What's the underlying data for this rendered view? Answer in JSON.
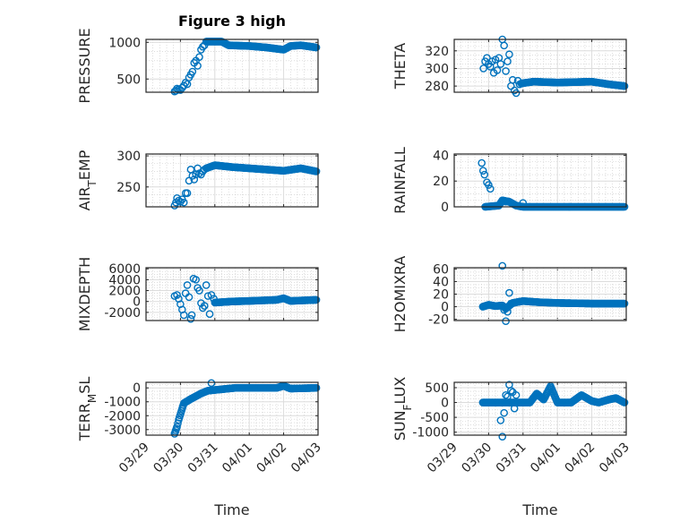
{
  "chart_data": [
    {
      "type": "scatter",
      "title": "Figure 3 high",
      "ylabel_parts": [
        "PRESSURE"
      ],
      "xlabel": "",
      "ylim": [
        320,
        1040
      ],
      "yticks": [
        500,
        1000
      ],
      "xlim": [
        0,
        5
      ],
      "x_units": "days since 03/29",
      "outliers": [
        [
          0.83,
          330
        ],
        [
          0.87,
          340
        ],
        [
          0.9,
          370
        ],
        [
          0.95,
          360
        ],
        [
          1.0,
          350
        ],
        [
          1.05,
          380
        ],
        [
          1.1,
          410
        ],
        [
          1.15,
          450
        ],
        [
          1.2,
          430
        ],
        [
          1.25,
          520
        ],
        [
          1.3,
          560
        ],
        [
          1.35,
          600
        ],
        [
          1.4,
          720
        ],
        [
          1.45,
          750
        ],
        [
          1.5,
          680
        ],
        [
          1.55,
          800
        ],
        [
          1.6,
          900
        ],
        [
          1.65,
          940
        ],
        [
          1.7,
          960
        ]
      ],
      "trace": [
        [
          1.75,
          1010
        ],
        [
          2.2,
          1010
        ],
        [
          2.4,
          960
        ],
        [
          3.0,
          950
        ],
        [
          3.5,
          930
        ],
        [
          4.0,
          900
        ],
        [
          4.2,
          950
        ],
        [
          4.5,
          960
        ],
        [
          4.95,
          930
        ]
      ]
    },
    {
      "type": "scatter",
      "title": "",
      "ylabel_parts": [
        "THETA"
      ],
      "xlabel": "",
      "ylim": [
        273,
        333
      ],
      "yticks": [
        280,
        300,
        320
      ],
      "xlim": [
        0,
        5
      ],
      "outliers": [
        [
          0.85,
          300
        ],
        [
          0.9,
          308
        ],
        [
          0.95,
          312
        ],
        [
          1.0,
          305
        ],
        [
          1.05,
          302
        ],
        [
          1.1,
          308
        ],
        [
          1.15,
          295
        ],
        [
          1.2,
          310
        ],
        [
          1.25,
          298
        ],
        [
          1.3,
          312
        ],
        [
          1.35,
          305
        ],
        [
          1.4,
          333
        ],
        [
          1.45,
          326
        ],
        [
          1.5,
          297
        ],
        [
          1.55,
          308
        ],
        [
          1.6,
          316
        ],
        [
          1.65,
          280
        ],
        [
          1.7,
          287
        ],
        [
          1.75,
          275
        ],
        [
          1.8,
          272
        ],
        [
          1.85,
          286
        ],
        [
          1.9,
          282
        ]
      ],
      "trace": [
        [
          1.95,
          283
        ],
        [
          2.3,
          285
        ],
        [
          3.0,
          284
        ],
        [
          4.0,
          285
        ],
        [
          4.5,
          282
        ],
        [
          4.95,
          280
        ]
      ]
    },
    {
      "type": "scatter",
      "title": "",
      "ylabel_parts": [
        "AIR",
        "T",
        "EMP"
      ],
      "xlabel": "",
      "ylim": [
        218,
        303
      ],
      "yticks": [
        250,
        300
      ],
      "xlim": [
        0,
        5
      ],
      "outliers": [
        [
          0.83,
          220
        ],
        [
          0.87,
          225
        ],
        [
          0.9,
          232
        ],
        [
          0.95,
          228
        ],
        [
          1.0,
          226
        ],
        [
          1.05,
          230
        ],
        [
          1.1,
          225
        ],
        [
          1.15,
          240
        ],
        [
          1.2,
          240
        ],
        [
          1.25,
          260
        ],
        [
          1.3,
          278
        ],
        [
          1.35,
          268
        ],
        [
          1.4,
          262
        ],
        [
          1.45,
          270
        ],
        [
          1.5,
          280
        ],
        [
          1.55,
          272
        ],
        [
          1.6,
          270
        ],
        [
          1.65,
          275
        ],
        [
          1.7,
          278
        ]
      ],
      "trace": [
        [
          1.75,
          280
        ],
        [
          2.0,
          285
        ],
        [
          2.5,
          282
        ],
        [
          3.0,
          280
        ],
        [
          3.5,
          278
        ],
        [
          4.0,
          276
        ],
        [
          4.5,
          280
        ],
        [
          4.95,
          275
        ]
      ]
    },
    {
      "type": "scatter",
      "title": "",
      "ylabel_parts": [
        "RAINFALL"
      ],
      "xlabel": "",
      "ylim": [
        0,
        41
      ],
      "yticks": [
        0,
        20,
        40
      ],
      "xlim": [
        0,
        5
      ],
      "outliers": [
        [
          0.8,
          34
        ],
        [
          0.84,
          28
        ],
        [
          0.88,
          25
        ],
        [
          0.95,
          19
        ],
        [
          1.0,
          17
        ],
        [
          1.05,
          14
        ],
        [
          1.4,
          5
        ],
        [
          1.5,
          4
        ],
        [
          2.0,
          3
        ]
      ],
      "trace": [
        [
          0.9,
          0
        ],
        [
          1.3,
          1
        ],
        [
          1.4,
          5
        ],
        [
          1.6,
          4
        ],
        [
          1.8,
          1
        ],
        [
          2.0,
          0
        ],
        [
          4.95,
          0
        ]
      ]
    },
    {
      "type": "scatter",
      "title": "",
      "ylabel_parts": [
        "MIXDEPTH"
      ],
      "xlabel": "",
      "ylim": [
        -3500,
        6200
      ],
      "yticks": [
        -2000,
        0,
        2000,
        4000,
        6000
      ],
      "xlim": [
        0,
        5
      ],
      "outliers": [
        [
          0.83,
          1000
        ],
        [
          0.9,
          1200
        ],
        [
          0.95,
          500
        ],
        [
          1.0,
          -500
        ],
        [
          1.05,
          -1500
        ],
        [
          1.1,
          -2500
        ],
        [
          1.15,
          1500
        ],
        [
          1.2,
          3000
        ],
        [
          1.25,
          800
        ],
        [
          1.3,
          -3200
        ],
        [
          1.33,
          -2500
        ],
        [
          1.38,
          4200
        ],
        [
          1.45,
          4000
        ],
        [
          1.5,
          2500
        ],
        [
          1.55,
          2000
        ],
        [
          1.6,
          -300
        ],
        [
          1.65,
          -1200
        ],
        [
          1.7,
          -800
        ],
        [
          1.75,
          3000
        ],
        [
          1.8,
          1000
        ],
        [
          1.85,
          -2300
        ],
        [
          1.9,
          1200
        ],
        [
          1.97,
          500
        ]
      ],
      "trace": [
        [
          2.0,
          -200
        ],
        [
          2.5,
          0
        ],
        [
          3.0,
          100
        ],
        [
          3.8,
          300
        ],
        [
          4.0,
          600
        ],
        [
          4.2,
          100
        ],
        [
          4.95,
          300
        ]
      ]
    },
    {
      "type": "scatter",
      "title": "",
      "ylabel_parts": [
        "H2OMIXRA"
      ],
      "xlabel": "",
      "ylim": [
        -22,
        62
      ],
      "yticks": [
        -20,
        0,
        20,
        40,
        60
      ],
      "xlim": [
        0,
        5
      ],
      "outliers": [
        [
          1.4,
          65
        ],
        [
          1.45,
          -5
        ],
        [
          1.5,
          -23
        ],
        [
          1.55,
          -8
        ],
        [
          1.6,
          22
        ],
        [
          1.65,
          5
        ]
      ],
      "trace": [
        [
          0.83,
          0
        ],
        [
          1.0,
          3
        ],
        [
          1.2,
          1
        ],
        [
          1.4,
          2
        ],
        [
          1.5,
          -3
        ],
        [
          1.7,
          6
        ],
        [
          2.0,
          9
        ],
        [
          2.5,
          7
        ],
        [
          3.0,
          6
        ],
        [
          4.0,
          5
        ],
        [
          4.95,
          5
        ]
      ]
    },
    {
      "type": "scatter",
      "title": "",
      "ylabel_parts": [
        "TERR",
        "M",
        "SL"
      ],
      "xlabel": "Time",
      "ylim": [
        -3400,
        400
      ],
      "yticks": [
        -3000,
        -2000,
        -1000,
        0
      ],
      "xlim": [
        0,
        5
      ],
      "outliers": [
        [
          1.9,
          350
        ]
      ],
      "trace": [
        [
          0.83,
          -3300
        ],
        [
          0.9,
          -2800
        ],
        [
          0.95,
          -2300
        ],
        [
          1.05,
          -1500
        ],
        [
          1.1,
          -1100
        ],
        [
          1.3,
          -800
        ],
        [
          1.6,
          -400
        ],
        [
          1.8,
          -200
        ],
        [
          2.2,
          -100
        ],
        [
          2.6,
          0
        ],
        [
          3.8,
          0
        ],
        [
          4.0,
          150
        ],
        [
          4.2,
          -50
        ],
        [
          4.95,
          0
        ]
      ]
    },
    {
      "type": "scatter",
      "title": "",
      "ylabel_parts": [
        "SUN",
        "F",
        "LUX"
      ],
      "xlabel": "Time",
      "ylim": [
        -1100,
        680
      ],
      "yticks": [
        -1000,
        -500,
        0,
        500
      ],
      "xlim": [
        0,
        5
      ],
      "outliers": [
        [
          1.4,
          -1150
        ],
        [
          1.35,
          -600
        ],
        [
          1.45,
          -350
        ],
        [
          1.5,
          250
        ],
        [
          1.55,
          200
        ],
        [
          1.6,
          600
        ],
        [
          1.65,
          400
        ],
        [
          1.7,
          350
        ],
        [
          1.75,
          -200
        ],
        [
          1.8,
          250
        ]
      ],
      "trace": [
        [
          0.83,
          0
        ],
        [
          1.3,
          0
        ],
        [
          2.2,
          0
        ],
        [
          2.4,
          300
        ],
        [
          2.6,
          100
        ],
        [
          2.8,
          550
        ],
        [
          3.0,
          0
        ],
        [
          3.4,
          0
        ],
        [
          3.7,
          250
        ],
        [
          4.0,
          50
        ],
        [
          4.2,
          0
        ],
        [
          4.5,
          100
        ],
        [
          4.7,
          150
        ],
        [
          4.95,
          0
        ]
      ]
    }
  ],
  "xtick_labels": [
    "03/29",
    "03/30",
    "03/31",
    "04/01",
    "04/02",
    "04/03"
  ],
  "marker_color": "#0072BD"
}
